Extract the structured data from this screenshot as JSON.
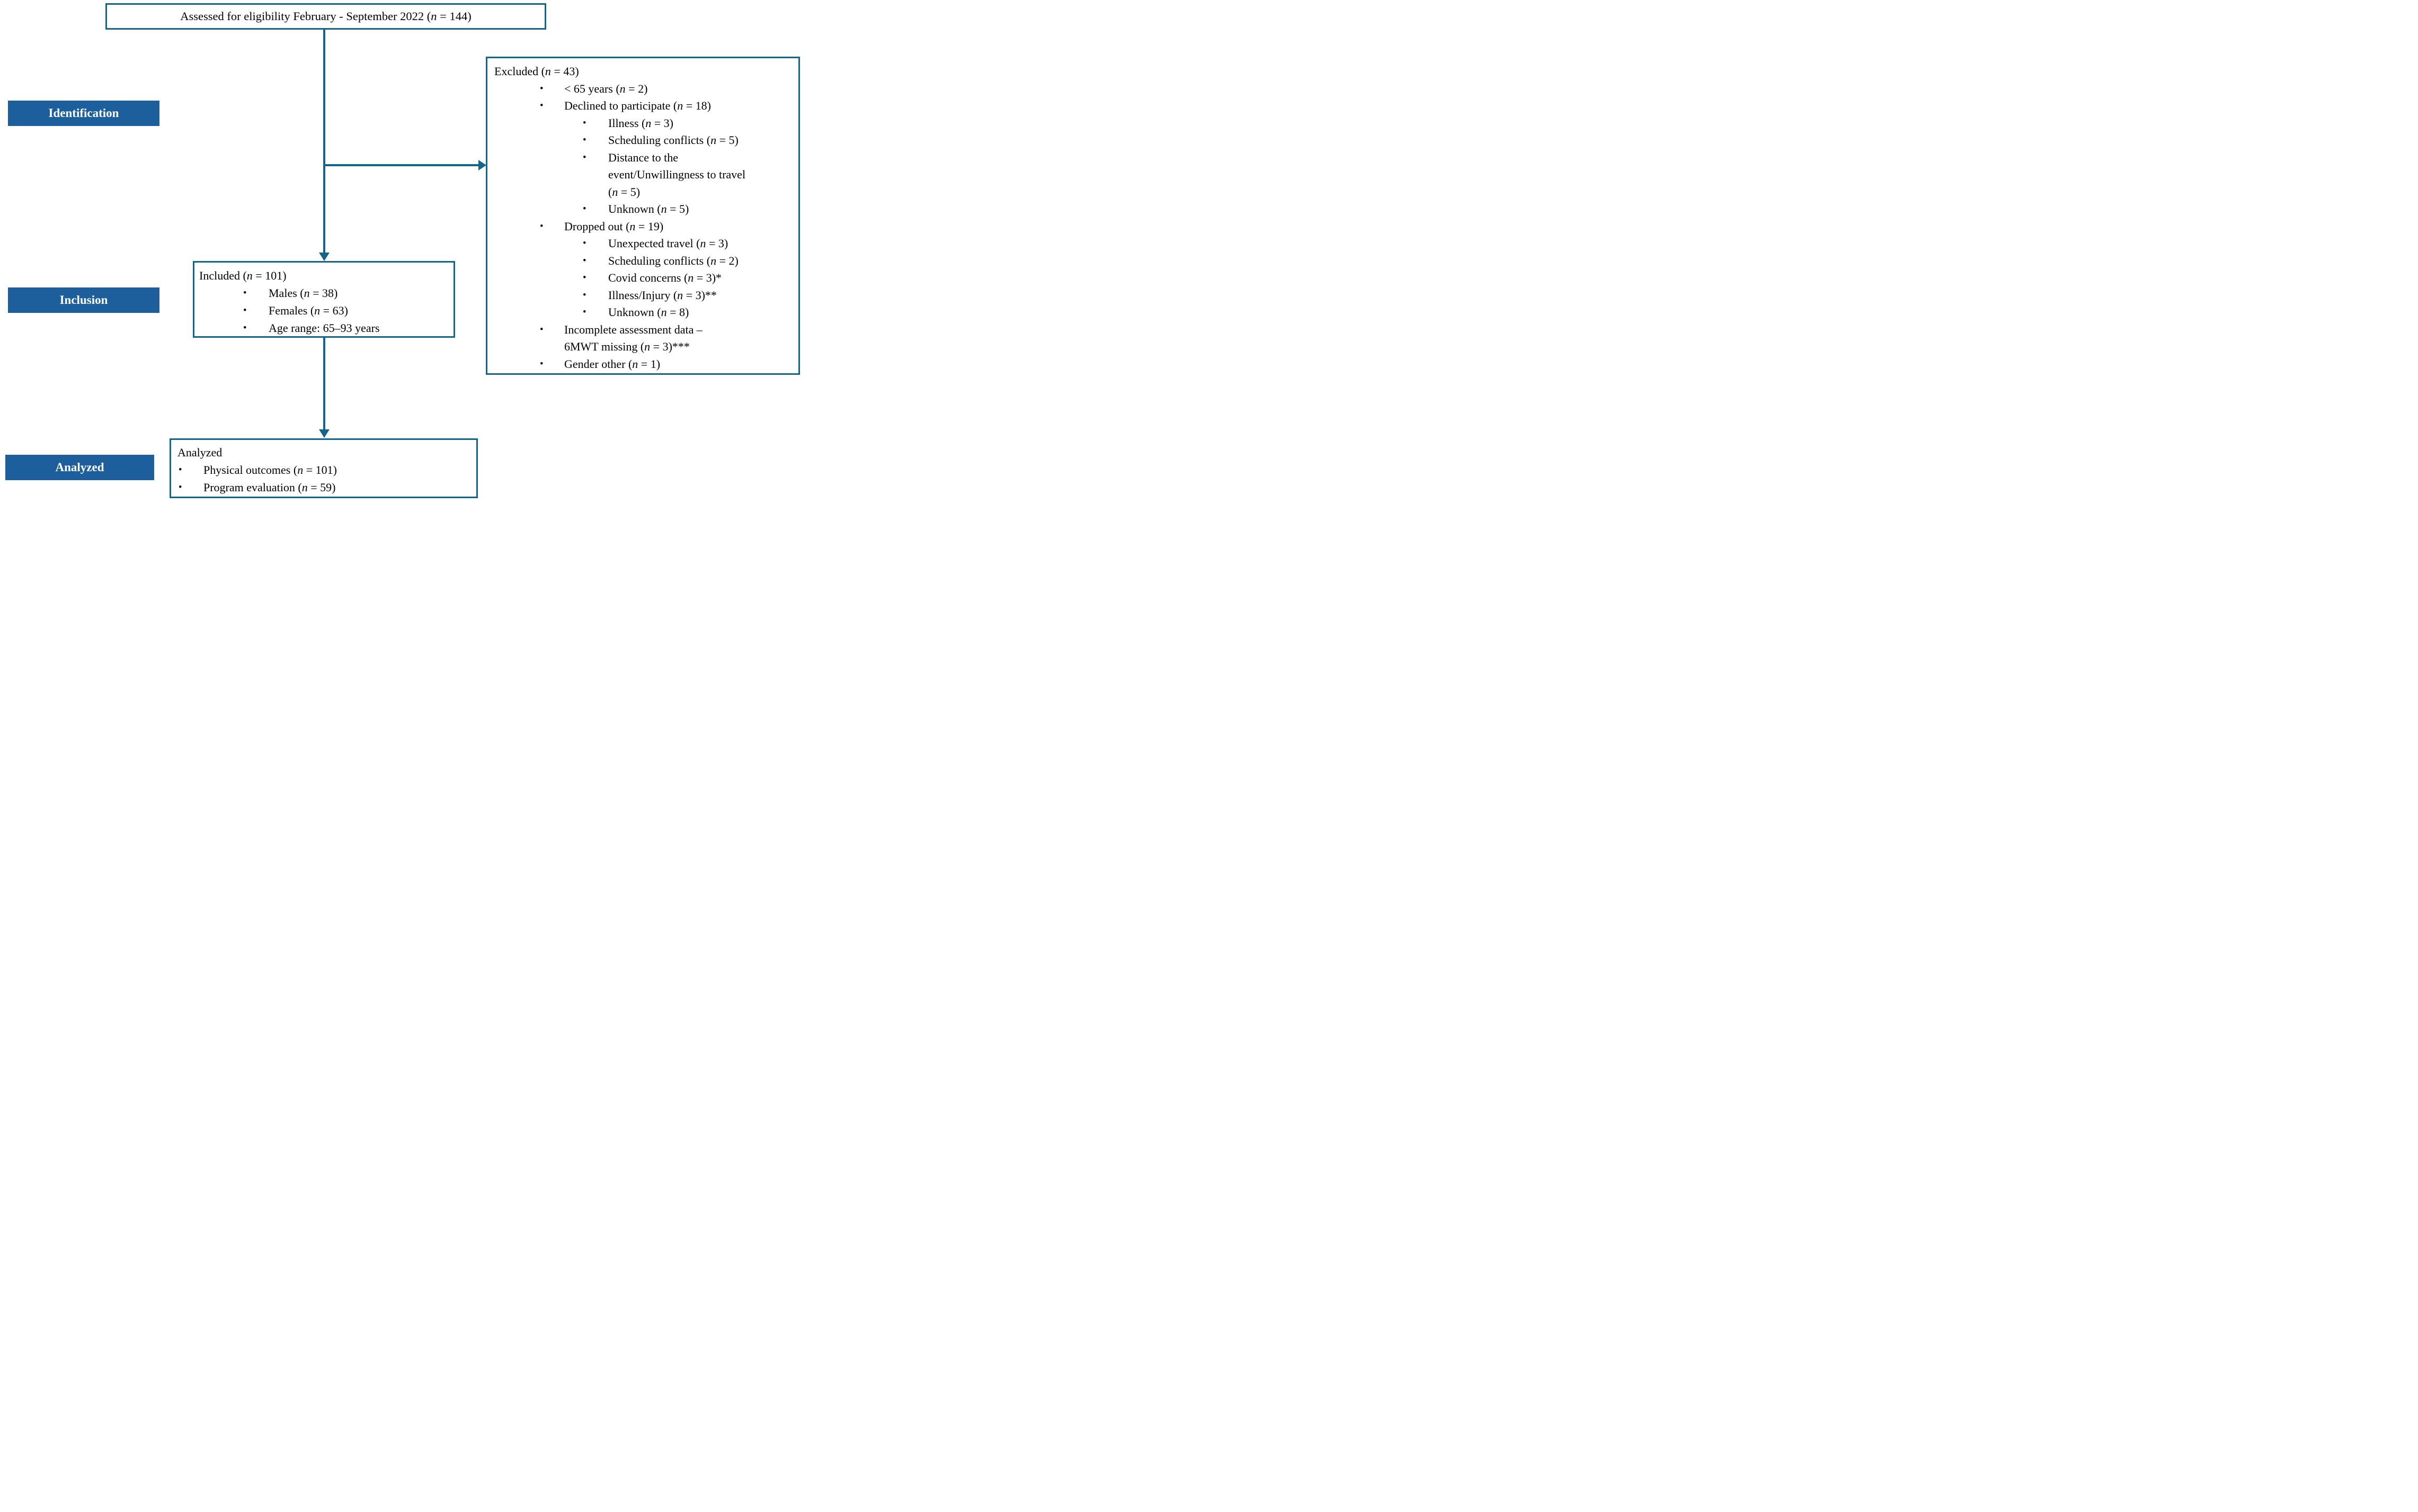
{
  "palette": {
    "teal": "#14658a",
    "label_blue": "#1c5f9c",
    "text": "#000000",
    "background": "#ffffff"
  },
  "top_box": {
    "text": "Assessed for eligibility February - September 2022 (n = 144)"
  },
  "stage_labels": [
    {
      "label": "Identification"
    },
    {
      "label": "Inclusion"
    },
    {
      "label": "Analyzed"
    }
  ],
  "excluded_box": {
    "title": "Excluded (n = 43)",
    "items": [
      {
        "level": 1,
        "text": "< 65 years (n = 2)"
      },
      {
        "level": 1,
        "text": "Declined to participate (n = 18)"
      },
      {
        "level": 2,
        "text": "Illness (n = 3)"
      },
      {
        "level": 2,
        "text": "Scheduling conflicts (n = 5)"
      },
      {
        "level": 2,
        "text": "Distance to the\nevent/Unwillingness to travel\n(n = 5)"
      },
      {
        "level": 2,
        "text": "Unknown (n = 5)"
      },
      {
        "level": 1,
        "text": "Dropped out (n = 19)"
      },
      {
        "level": 2,
        "text": "Unexpected travel (n = 3)"
      },
      {
        "level": 2,
        "text": "Scheduling conflicts (n = 2)"
      },
      {
        "level": 2,
        "text": "Covid concerns (n = 3)*"
      },
      {
        "level": 2,
        "text": "Illness/Injury (n = 3)**"
      },
      {
        "level": 2,
        "text": "Unknown (n = 8)"
      },
      {
        "level": 1,
        "text": "Incomplete assessment data –\n6MWT missing (n = 3)***"
      },
      {
        "level": 1,
        "text": "Gender other (n = 1)"
      }
    ]
  },
  "included_box": {
    "title": "Included (n = 101)",
    "items": [
      {
        "level": 1,
        "text": "Males (n = 38)"
      },
      {
        "level": 1,
        "text": "Females (n = 63)"
      },
      {
        "level": 1,
        "text": "Age range: 65–93 years"
      }
    ]
  },
  "analyzed_box": {
    "title": "Analyzed",
    "items": [
      {
        "level": 1,
        "text": "Physical outcomes (n = 101)"
      },
      {
        "level": 1,
        "text": "Program evaluation (n = 59)"
      }
    ]
  }
}
